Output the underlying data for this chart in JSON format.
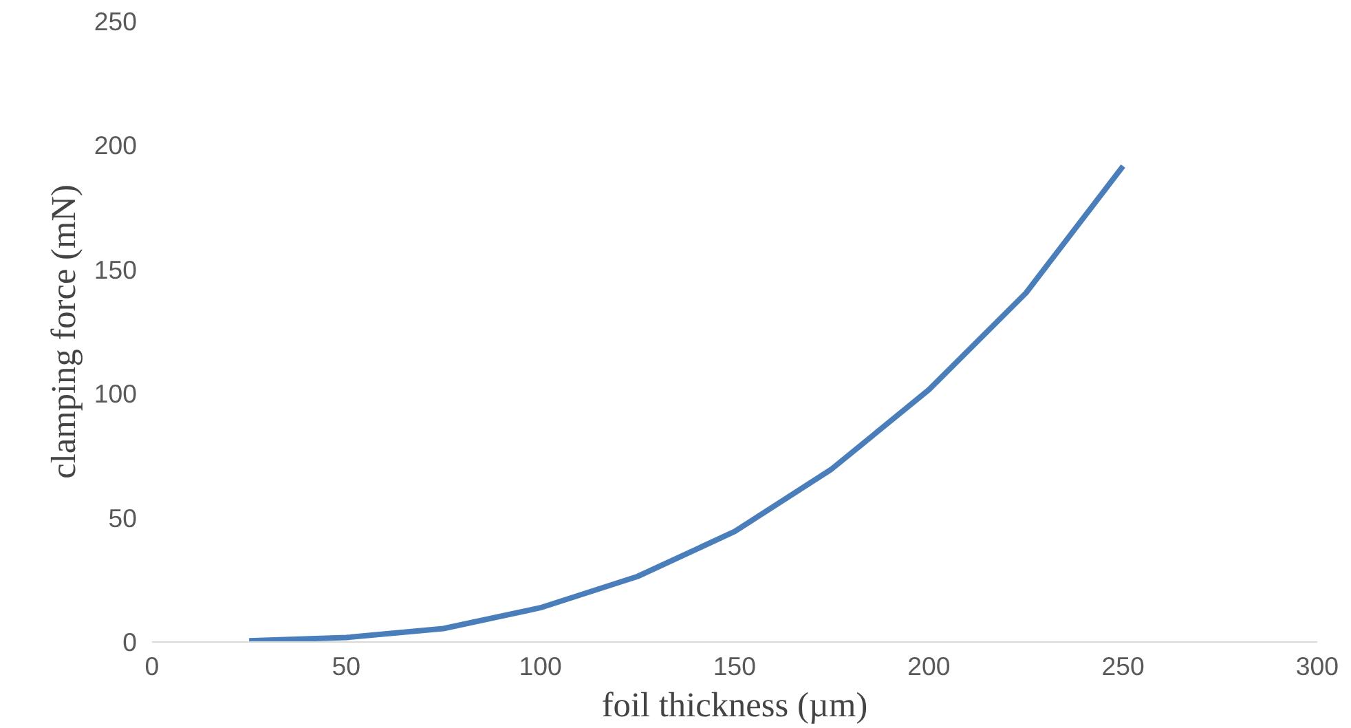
{
  "chart_data": {
    "type": "line",
    "xlabel": "foil thickness (µm)",
    "ylabel": "clamping force (mN)",
    "x": [
      25,
      50,
      75,
      100,
      125,
      150,
      175,
      200,
      225,
      250
    ],
    "series": [
      {
        "color": "#4a7ebb",
        "values": [
          0.5,
          1.8,
          5.4,
          13.8,
          26.4,
          44.5,
          69.7,
          101.6,
          140.6,
          191.7
        ]
      }
    ],
    "xlim": [
      0,
      300
    ],
    "ylim": [
      0,
      250
    ],
    "xticks": [
      0,
      50,
      100,
      150,
      200,
      250,
      300
    ],
    "yticks": [
      0,
      50,
      100,
      150,
      200,
      250
    ],
    "grid": false,
    "marker": "none",
    "line_style": "solid"
  }
}
